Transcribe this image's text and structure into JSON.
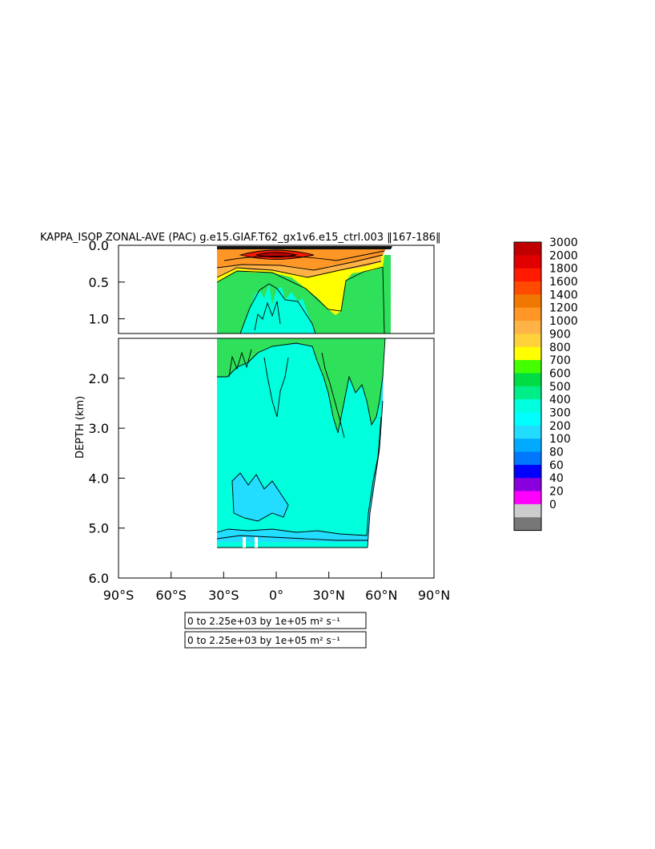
{
  "chart_data": {
    "type": "heatmap",
    "title": "KAPPA_ISOP ZONAL-AVE (PAC) g.e15.GIAF.T62_gx1v6.e15_ctrl.003 ‖167-186‖",
    "ylabel": "DEPTH (km)",
    "xlabel": "",
    "x_ticks": [
      "90°S",
      "60°S",
      "30°S",
      "0°",
      "30°N",
      "60°N",
      "90°N"
    ],
    "x_tick_values": [
      -90,
      -60,
      -30,
      0,
      30,
      60,
      90
    ],
    "upper_panel": {
      "ylim": [
        0,
        1.2
      ],
      "y_ticks": [
        "0.0",
        "0.5",
        "1.0"
      ],
      "y_tick_values": [
        0.0,
        0.5,
        1.0
      ]
    },
    "lower_panel": {
      "ylim": [
        1.2,
        6.0
      ],
      "y_ticks": [
        "2.0",
        "3.0",
        "4.0",
        "5.0",
        "6.0"
      ],
      "y_tick_values": [
        2.0,
        3.0,
        4.0,
        5.0,
        6.0
      ]
    },
    "data_extent": {
      "lat_range": [
        -34,
        62
      ],
      "max_depth_km": 5.4
    },
    "colorbar": {
      "labels": [
        "3000",
        "2000",
        "1800",
        "1600",
        "1400",
        "1200",
        "1000",
        "900",
        "800",
        "700",
        "600",
        "500",
        "400",
        "300",
        "200",
        "100",
        "80",
        "60",
        "40",
        "20",
        "0"
      ],
      "colors": [
        "#c00000",
        "#e00000",
        "#ff1a00",
        "#ff4a00",
        "#f07800",
        "#ff9626",
        "#ffb347",
        "#ffd23c",
        "#ffff00",
        "#44ff00",
        "#00dd44",
        "#00ee88",
        "#00ffdd",
        "#00ffff",
        "#22ddff",
        "#00aaff",
        "#0077ff",
        "#0000ff",
        "#8800dd",
        "#ff00ff",
        "#cccccc",
        "#777777"
      ]
    },
    "contour_labels": [
      "0 to 2.25e+03 by 1e+05 m² s⁻¹",
      "0 to 2.25e+03 by 1e+05 m² s⁻¹"
    ]
  }
}
